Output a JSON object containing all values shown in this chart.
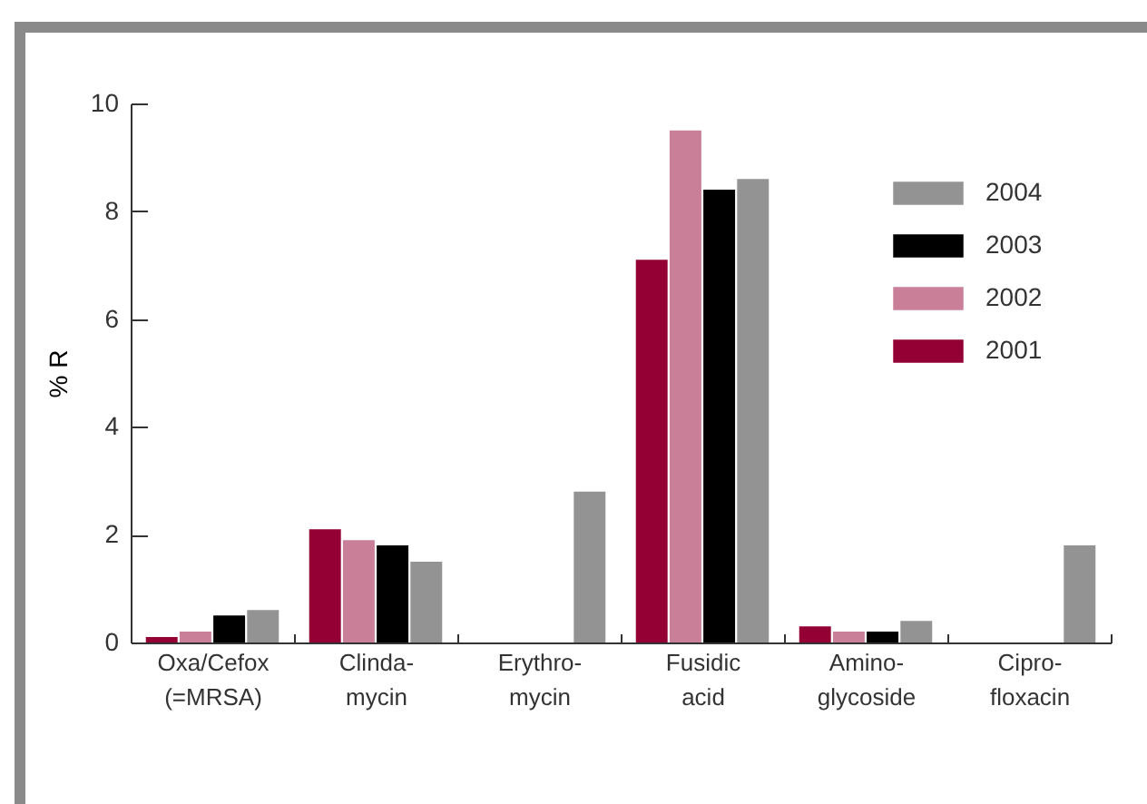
{
  "chart_data": {
    "type": "bar",
    "ylabel": "% R",
    "categories": [
      "Oxa/Cefox\n(=MRSA)",
      "Clinda-\nmycin",
      "Erythro-\nmycin",
      "Fusidic\nacid",
      "Amino-\nglycoside",
      "Cipro-\nfloxacin"
    ],
    "series": [
      {
        "name": "2001",
        "color": "#940033",
        "values": [
          0.1,
          2.1,
          0,
          7.1,
          0.3,
          0
        ]
      },
      {
        "name": "2002",
        "color": "#c97f98",
        "values": [
          0.2,
          1.9,
          0,
          9.5,
          0.2,
          0
        ]
      },
      {
        "name": "2003",
        "color": "#000000",
        "values": [
          0.5,
          1.8,
          0,
          8.4,
          0.2,
          0
        ]
      },
      {
        "name": "2004",
        "color": "#939393",
        "values": [
          0.6,
          1.5,
          2.8,
          8.6,
          0.4,
          1.8
        ]
      }
    ],
    "ylim": [
      0,
      10
    ],
    "yticks": [
      0,
      2,
      4,
      6,
      8,
      10
    ],
    "grid": false,
    "legend": "top right"
  }
}
